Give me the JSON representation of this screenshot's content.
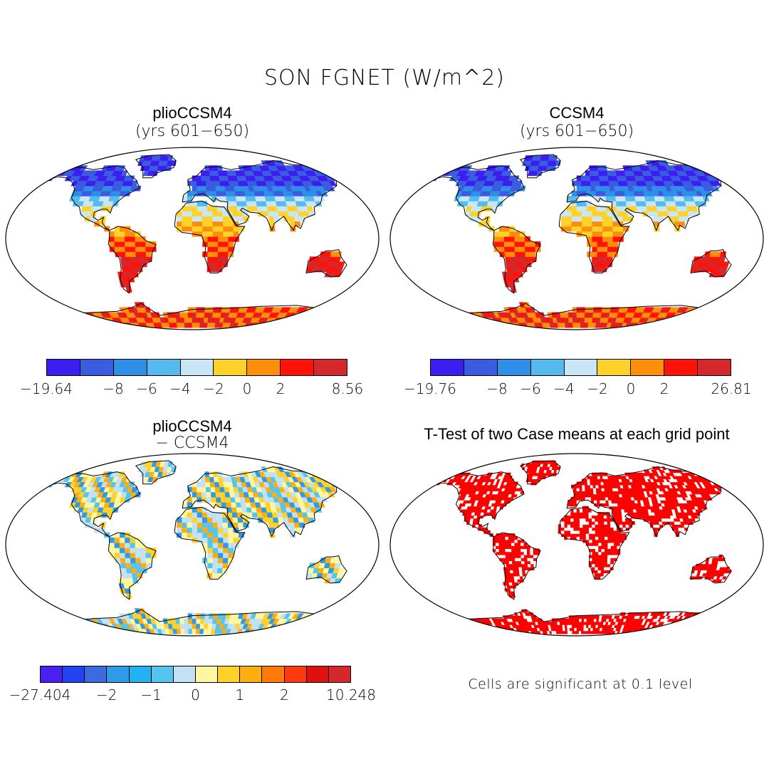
{
  "title": "SON FGNET (W/m^2)",
  "panels": [
    {
      "title": "plioCCSM4",
      "subtitle": "(yrs 601−650)",
      "map_type": "field",
      "colorbar": {
        "colors": [
          "#3c1ff0",
          "#3a5ce0",
          "#2f8ee8",
          "#55bbee",
          "#c8e6f6",
          "#ffd22a",
          "#ff8e0a",
          "#ff1208",
          "#d4282c"
        ],
        "labels": [
          "−19.64",
          "−8",
          "−6",
          "−4",
          "−2",
          "0",
          "2",
          "8.56"
        ]
      }
    },
    {
      "title": "CCSM4",
      "subtitle": "(yrs 601−650)",
      "map_type": "field",
      "colorbar": {
        "colors": [
          "#3c1ff0",
          "#3a5ce0",
          "#2f8ee8",
          "#55bbee",
          "#c8e6f6",
          "#ffd22a",
          "#ff8e0a",
          "#ff1208",
          "#d4282c"
        ],
        "labels": [
          "−19.76",
          "−8",
          "−6",
          "−4",
          "−2",
          "0",
          "2",
          "26.81"
        ]
      }
    },
    {
      "title": "plioCCSM4",
      "subtitle": "− CCSM4",
      "map_type": "difference",
      "colorbar": {
        "colors": [
          "#4a1ff0",
          "#2244f0",
          "#3a6ce0",
          "#2f9ae8",
          "#22b2f2",
          "#55c4ee",
          "#c2e2f4",
          "#fff6a0",
          "#ffd22a",
          "#ffae10",
          "#ff7a0a",
          "#ff3a10",
          "#e01010",
          "#d4282c"
        ],
        "labels": [
          "−27.404",
          "−2",
          "−1",
          "0",
          "1",
          "2",
          "10.248"
        ]
      }
    },
    {
      "title": "T-Test of two Case means at each grid point",
      "map_type": "significance",
      "significance_color": "#ff0000",
      "note": "Cells are significant at 0.1 level"
    }
  ]
}
